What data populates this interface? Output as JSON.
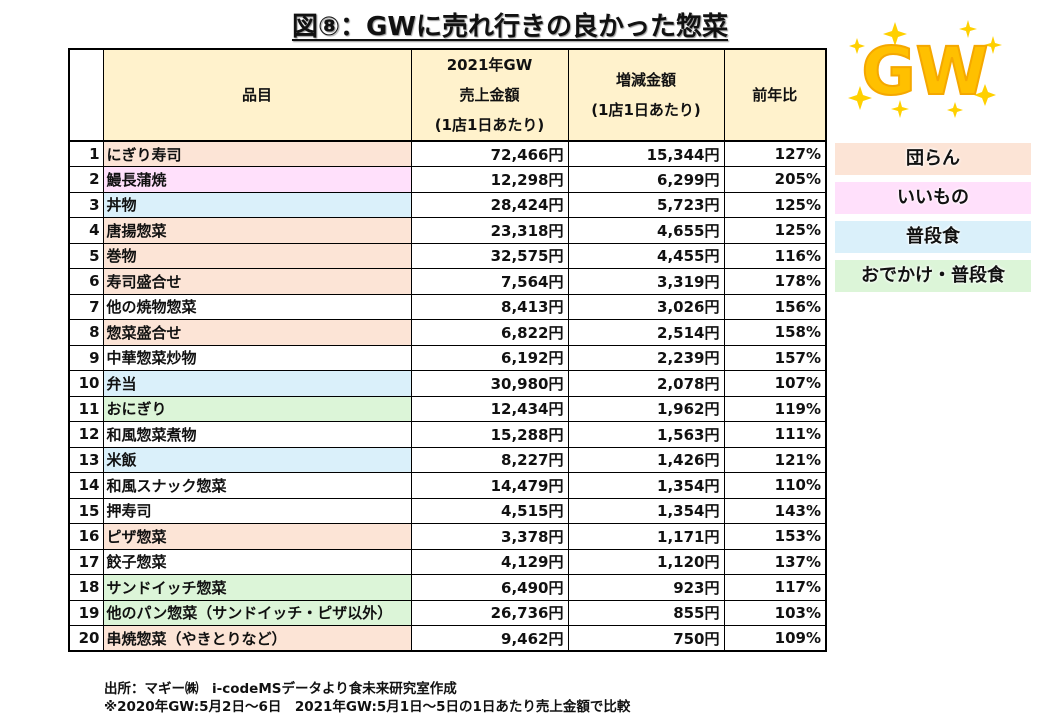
{
  "title": "図⑧：GWに売れ行きの良かった惣菜",
  "table": {
    "headers": {
      "item": "品目",
      "sales_line1": "2021年GW",
      "sales_line2": "売上金額",
      "sales_line3": "(1店1日あたり)",
      "change_line1": "増減金額",
      "change_line2": "(1店1日あたり)",
      "ratio": "前年比"
    },
    "rows": [
      {
        "rank": "1",
        "item": "にぎり寿司",
        "sales": "72,466円",
        "change": "15,344円",
        "ratio": "127%",
        "category": "danran"
      },
      {
        "rank": "2",
        "item": "鰻長蒲焼",
        "sales": "12,298円",
        "change": "6,299円",
        "ratio": "205%",
        "category": "iimono"
      },
      {
        "rank": "3",
        "item": "丼物",
        "sales": "28,424円",
        "change": "5,723円",
        "ratio": "125%",
        "category": "fudan"
      },
      {
        "rank": "4",
        "item": "唐揚惣菜",
        "sales": "23,318円",
        "change": "4,655円",
        "ratio": "125%",
        "category": "danran"
      },
      {
        "rank": "5",
        "item": "巻物",
        "sales": "32,575円",
        "change": "4,455円",
        "ratio": "116%",
        "category": "danran"
      },
      {
        "rank": "6",
        "item": "寿司盛合せ",
        "sales": "7,564円",
        "change": "3,319円",
        "ratio": "178%",
        "category": "danran"
      },
      {
        "rank": "7",
        "item": "他の焼物惣菜",
        "sales": "8,413円",
        "change": "3,026円",
        "ratio": "156%",
        "category": "none"
      },
      {
        "rank": "8",
        "item": "惣菜盛合せ",
        "sales": "6,822円",
        "change": "2,514円",
        "ratio": "158%",
        "category": "danran"
      },
      {
        "rank": "9",
        "item": "中華惣菜炒物",
        "sales": "6,192円",
        "change": "2,239円",
        "ratio": "157%",
        "category": "none"
      },
      {
        "rank": "10",
        "item": "弁当",
        "sales": "30,980円",
        "change": "2,078円",
        "ratio": "107%",
        "category": "fudan"
      },
      {
        "rank": "11",
        "item": "おにぎり",
        "sales": "12,434円",
        "change": "1,962円",
        "ratio": "119%",
        "category": "odekake"
      },
      {
        "rank": "12",
        "item": "和風惣菜煮物",
        "sales": "15,288円",
        "change": "1,563円",
        "ratio": "111%",
        "category": "none"
      },
      {
        "rank": "13",
        "item": "米飯",
        "sales": "8,227円",
        "change": "1,426円",
        "ratio": "121%",
        "category": "fudan"
      },
      {
        "rank": "14",
        "item": "和風スナック惣菜",
        "sales": "14,479円",
        "change": "1,354円",
        "ratio": "110%",
        "category": "none"
      },
      {
        "rank": "15",
        "item": "押寿司",
        "sales": "4,515円",
        "change": "1,354円",
        "ratio": "143%",
        "category": "none"
      },
      {
        "rank": "16",
        "item": "ピザ惣菜",
        "sales": "3,378円",
        "change": "1,171円",
        "ratio": "153%",
        "category": "danran"
      },
      {
        "rank": "17",
        "item": "餃子惣菜",
        "sales": "4,129円",
        "change": "1,120円",
        "ratio": "137%",
        "category": "none"
      },
      {
        "rank": "18",
        "item": "サンドイッチ惣菜",
        "sales": "6,490円",
        "change": "923円",
        "ratio": "117%",
        "category": "odekake"
      },
      {
        "rank": "19",
        "item": "他のパン惣菜（サンドイッチ・ピザ以外）",
        "sales": "26,736円",
        "change": "855円",
        "ratio": "103%",
        "category": "odekake"
      },
      {
        "rank": "20",
        "item": "串焼惣菜（やきとりなど）",
        "sales": "9,462円",
        "change": "750円",
        "ratio": "109%",
        "category": "danran"
      }
    ]
  },
  "legend": [
    {
      "label": "団らん",
      "category": "danran",
      "color": "#fce4d6"
    },
    {
      "label": "いいもの",
      "category": "iimono",
      "color": "#ffe0fb"
    },
    {
      "label": "普段食",
      "category": "fudan",
      "color": "#daf0fa"
    },
    {
      "label": "おでかけ・普段食",
      "category": "odekake",
      "color": "#dcf5d8"
    }
  ],
  "logo": {
    "text": "GW",
    "color": "#ffc000"
  },
  "footer": {
    "source": "出所：マギー㈱　i-codeMSデータより食未来研究室作成",
    "note": "※2020年GW:5月2日～6日　2021年GW:5月1日～5日の1日あたり売上金額で比較"
  }
}
